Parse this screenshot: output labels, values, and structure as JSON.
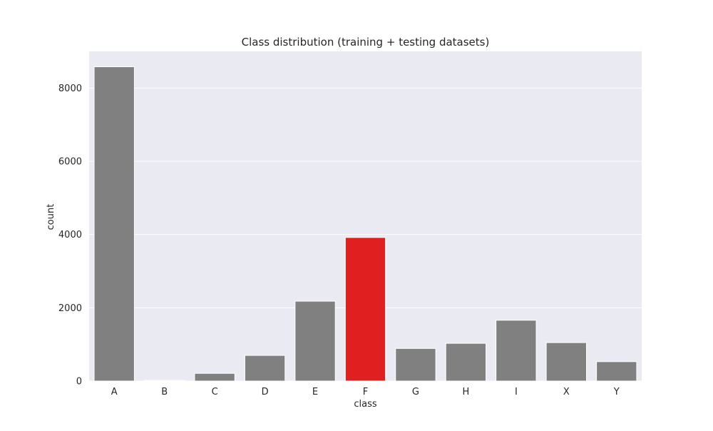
{
  "chart_data": {
    "type": "bar",
    "title": "Class distribution (training + testing datasets)",
    "xlabel": "class",
    "ylabel": "count",
    "categories": [
      "A",
      "B",
      "C",
      "D",
      "E",
      "F",
      "G",
      "H",
      "I",
      "X",
      "Y"
    ],
    "values": [
      8580,
      20,
      210,
      700,
      2180,
      3920,
      890,
      1030,
      1660,
      1050,
      530
    ],
    "ylim": [
      0,
      9000
    ],
    "yticks": [
      0,
      2000,
      4000,
      6000,
      8000
    ],
    "grid": true,
    "highlight_category": "F",
    "colors": {
      "background": "#eaeaf2",
      "bar": "#808080",
      "highlight": "#e02020",
      "grid": "#ffffff"
    }
  }
}
